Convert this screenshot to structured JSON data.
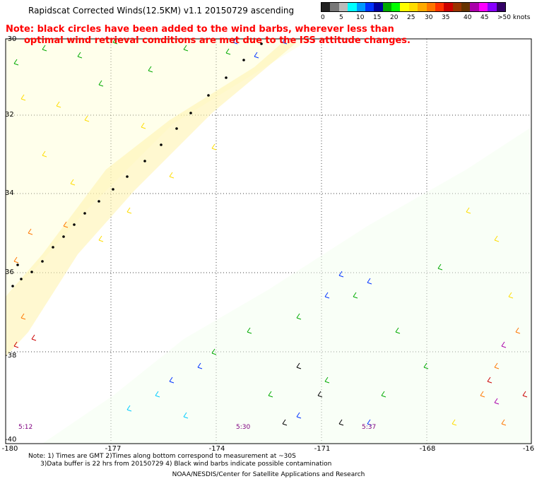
{
  "title": "Rapidscat Corrected Winds(12.5KM) v1.1 20150729 ascending",
  "note": {
    "line1": "Note: black circles have been added to the wind barbs, wherever less than",
    "line2": "optimal wind retrieval conditions are met due to the ISS attitude changes."
  },
  "legend": {
    "labels": [
      "0",
      "5",
      "10",
      "15",
      "20",
      "25",
      "30",
      "35",
      "40",
      "45",
      ">50 knots"
    ],
    "colors": [
      "#222222",
      "#777777",
      "#bbbbbb",
      "#00ffff",
      "#0099ff",
      "#0033ff",
      "#0000a0",
      "#00aa00",
      "#00ff00",
      "#ffff00",
      "#ffdd00",
      "#ffaa00",
      "#ff7700",
      "#ff3300",
      "#cc0000",
      "#993300",
      "#663300",
      "#aa00aa",
      "#ff00ff",
      "#8800ff",
      "#330066"
    ]
  },
  "axes": {
    "lon_ticks": [
      "-180",
      "-177",
      "-174",
      "-171",
      "-168",
      "-16"
    ],
    "lat_ticks": [
      "-30",
      "32",
      "34",
      "36",
      "-38",
      "-40"
    ]
  },
  "time_labels": [
    "5:12",
    "5:30",
    "5:37"
  ],
  "footnote": {
    "line1": "Note: 1) Times are GMT 2)Times along bottom correspond to measurement at ~30S",
    "line2": "      3)Data buffer is 22 hrs from 20150729 4) Black wind barbs indicate possible contamination"
  },
  "credit": "NOAA/NESDIS/Center for Satellite Applications and Research"
}
